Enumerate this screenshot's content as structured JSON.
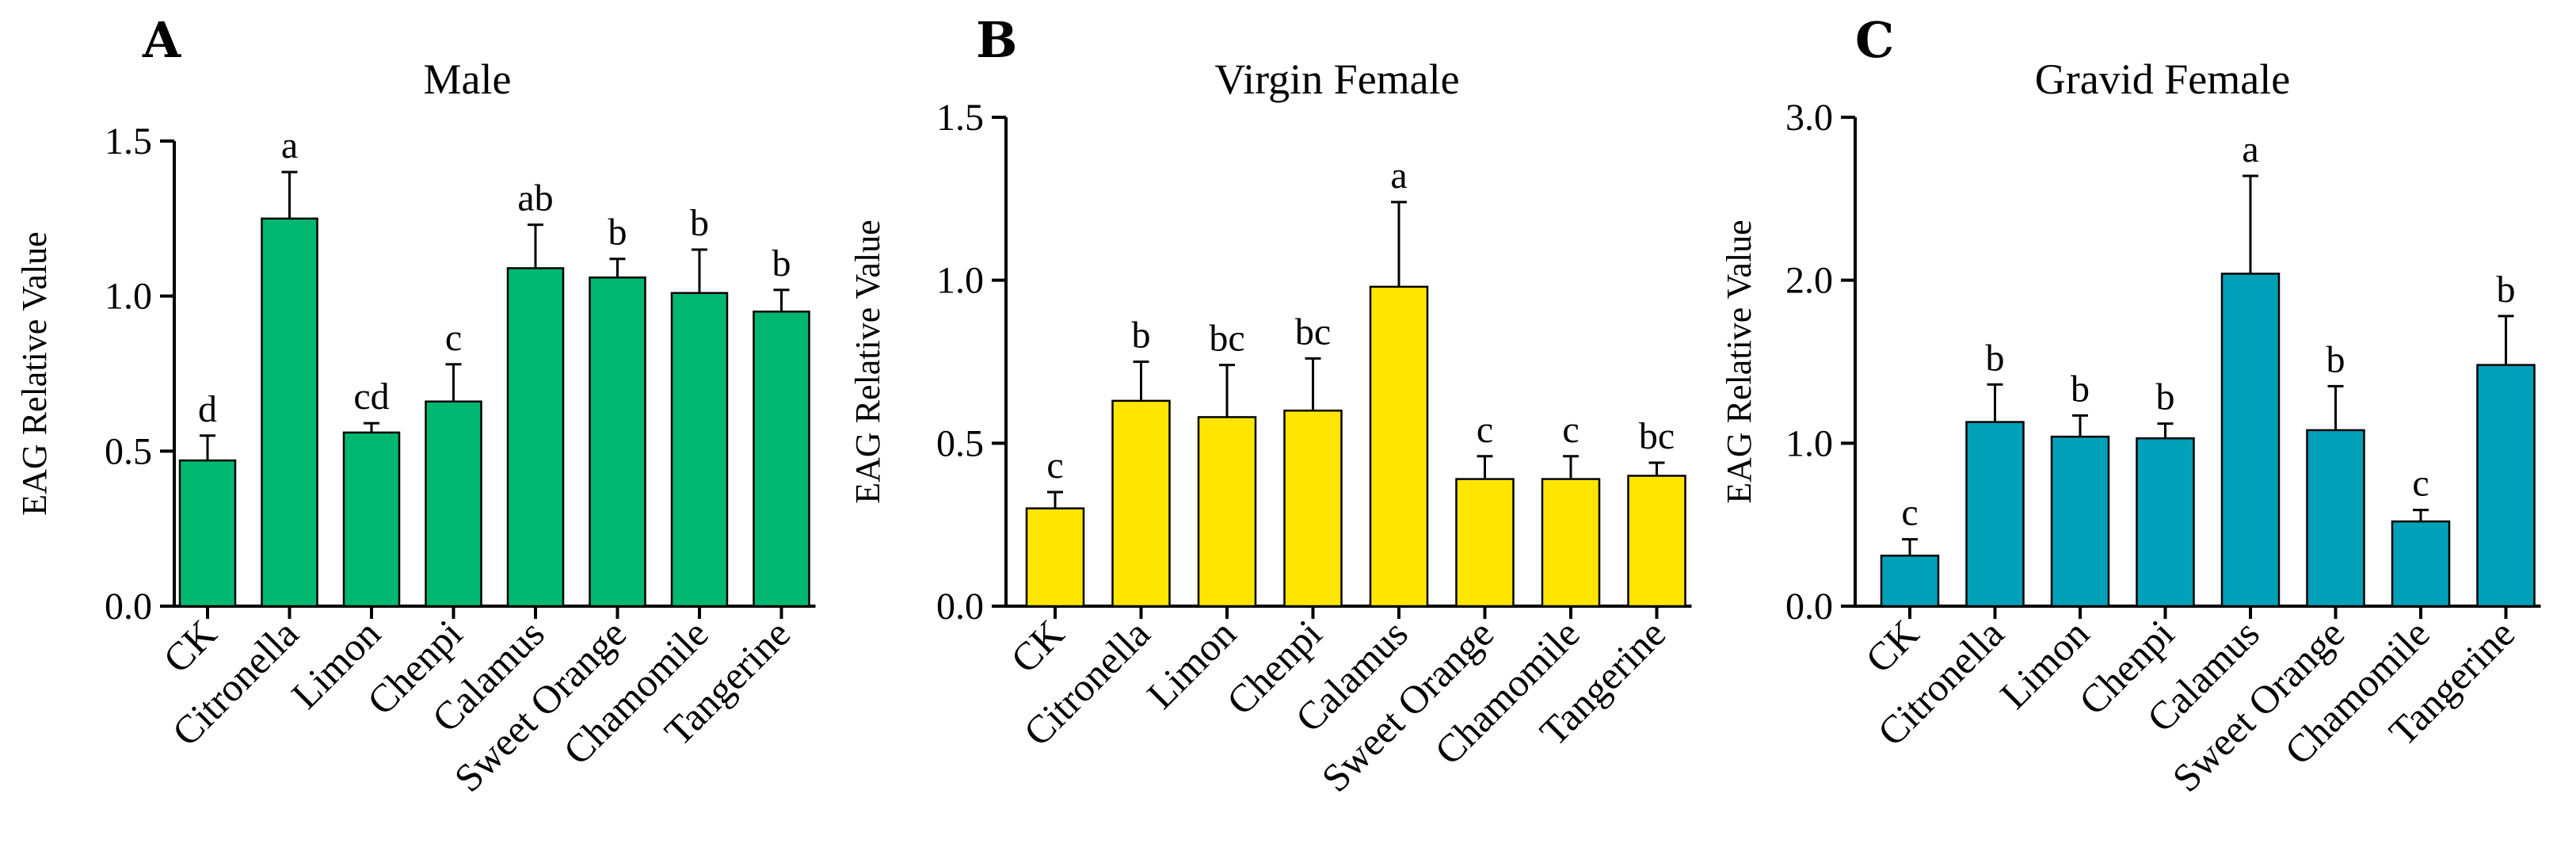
{
  "chart_data": [
    {
      "type": "bar",
      "panel": "A",
      "title": "Male",
      "ylabel": "EAG Relative Value",
      "xlabel": "",
      "ylim": [
        0,
        1.5
      ],
      "yticks": [
        "0.0",
        "0.5",
        "1.0",
        "1.5"
      ],
      "ytick_values": [
        0,
        0.5,
        1.0,
        1.5
      ],
      "color": "#00B771",
      "categories": [
        "CK",
        "Citronella",
        "Limon",
        "Chenpi",
        "Calamus",
        "Sweet Orange",
        "Chamomile",
        "Tangerine"
      ],
      "values": [
        0.47,
        1.25,
        0.56,
        0.66,
        1.09,
        1.06,
        1.01,
        0.95
      ],
      "errors": [
        0.08,
        0.15,
        0.03,
        0.12,
        0.14,
        0.06,
        0.14,
        0.07
      ],
      "significance": [
        "d",
        "a",
        "cd",
        "c",
        "ab",
        "b",
        "b",
        "b"
      ]
    },
    {
      "type": "bar",
      "panel": "B",
      "title": "Virgin Female",
      "ylabel": "EAG Relative Value",
      "xlabel": "",
      "ylim": [
        0,
        1.5
      ],
      "yticks": [
        "0.0",
        "0.5",
        "1.0",
        "1.5"
      ],
      "ytick_values": [
        0,
        0.5,
        1.0,
        1.5
      ],
      "color": "#FFE600",
      "categories": [
        "CK",
        "Citronella",
        "Limon",
        "Chenpi",
        "Calamus",
        "Sweet Orange",
        "Chamomile",
        "Tangerine"
      ],
      "values": [
        0.3,
        0.63,
        0.58,
        0.6,
        0.98,
        0.39,
        0.39,
        0.4
      ],
      "errors": [
        0.05,
        0.12,
        0.16,
        0.16,
        0.26,
        0.07,
        0.07,
        0.04
      ],
      "significance": [
        "c",
        "b",
        "bc",
        "bc",
        "a",
        "c",
        "c",
        "bc"
      ]
    },
    {
      "type": "bar",
      "panel": "C",
      "title": "Gravid Female",
      "ylabel": "EAG Relative Value",
      "xlabel": "",
      "ylim": [
        0,
        3.0
      ],
      "yticks": [
        "0.0",
        "1.0",
        "2.0",
        "3.0"
      ],
      "ytick_values": [
        0,
        1.0,
        2.0,
        3.0
      ],
      "color": "#00A0B8",
      "categories": [
        "CK",
        "Citronella",
        "Limon",
        "Chenpi",
        "Calamus",
        "Sweet Orange",
        "Chamomile",
        "Tangerine"
      ],
      "values": [
        0.31,
        1.13,
        1.04,
        1.03,
        2.04,
        1.08,
        0.52,
        1.48
      ],
      "errors": [
        0.1,
        0.23,
        0.13,
        0.09,
        0.6,
        0.27,
        0.07,
        0.3
      ],
      "significance": [
        "c",
        "b",
        "b",
        "b",
        "a",
        "b",
        "c",
        "b"
      ]
    }
  ]
}
